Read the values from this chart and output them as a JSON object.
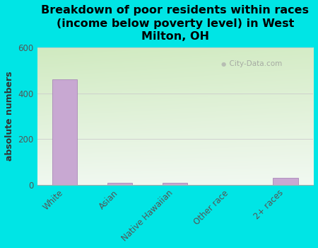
{
  "categories": [
    "White",
    "Asian",
    "Native Hawaiian",
    "Other race",
    "2+ races"
  ],
  "values": [
    460,
    10,
    10,
    0,
    30
  ],
  "bar_color": "#c8a8d2",
  "bar_edge_color": "#a07ab0",
  "background_color": "#00e5e5",
  "plot_bg_top_left": "#d0eac0",
  "plot_bg_bottom_right": "#eef8ee",
  "title": "Breakdown of poor residents within races\n(income below poverty level) in West\nMilton, OH",
  "ylabel": "absolute numbers",
  "ylim": [
    0,
    600
  ],
  "yticks": [
    0,
    200,
    400,
    600
  ],
  "title_fontsize": 11.5,
  "axis_fontsize": 9,
  "tick_fontsize": 8.5,
  "watermark": "City-Data.com",
  "bar_width": 0.45
}
